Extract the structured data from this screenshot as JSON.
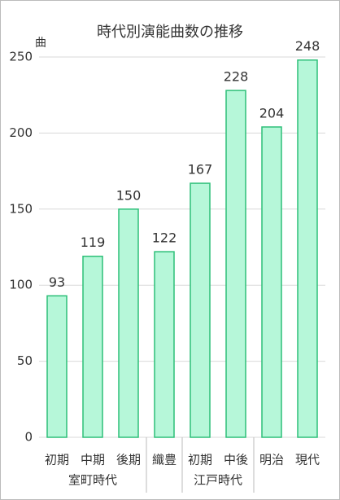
{
  "chart_data": {
    "type": "bar",
    "title": "時代別演能曲数の推移",
    "y_label": "曲",
    "categories": [
      "初期",
      "中期",
      "後期",
      "織豊",
      "初期",
      "中後",
      "明治",
      "現代"
    ],
    "category_groups": [
      "室町時代",
      "室町時代",
      "室町時代",
      null,
      "江戸時代",
      "江戸時代",
      null,
      null
    ],
    "values": [
      93,
      119,
      150,
      122,
      167,
      228,
      204,
      248
    ],
    "color": "#b6f7d9",
    "edge_color": "#2dbf78",
    "ylim": [
      0,
      250
    ],
    "yticks": [
      0,
      50,
      100,
      150,
      200,
      250
    ],
    "grid": true
  }
}
